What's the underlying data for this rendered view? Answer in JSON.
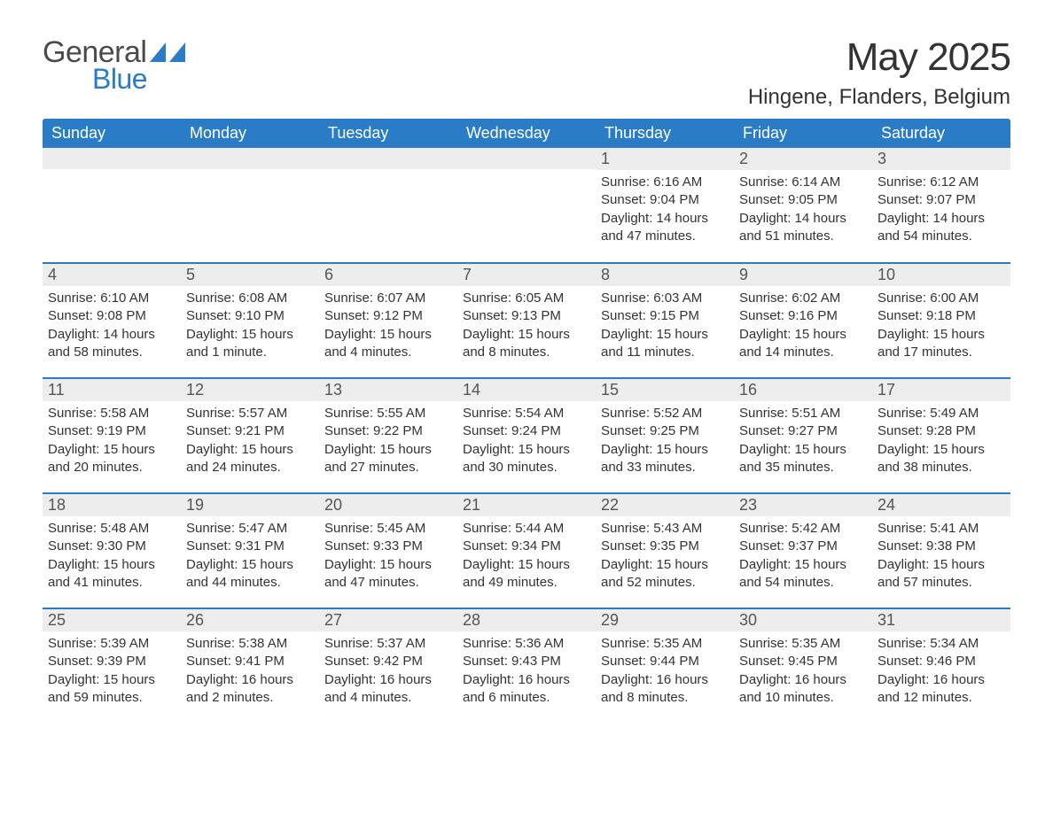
{
  "logo": {
    "text1": "General",
    "text2": "Blue",
    "icon_color": "#2a7cc7"
  },
  "title": "May 2025",
  "location": "Hingene, Flanders, Belgium",
  "colors": {
    "header_bg": "#2a7cc7",
    "header_text": "#ffffff",
    "row_border": "#2a7cc7",
    "daynum_bg": "#ededed",
    "daynum_text": "#555555",
    "body_text": "#333333",
    "page_bg": "#ffffff"
  },
  "font": {
    "family": "Arial",
    "title_size_pt": 33,
    "location_size_pt": 18,
    "th_size_pt": 14,
    "daynum_size_pt": 14,
    "body_size_pt": 11
  },
  "day_headers": [
    "Sunday",
    "Monday",
    "Tuesday",
    "Wednesday",
    "Thursday",
    "Friday",
    "Saturday"
  ],
  "weeks": [
    [
      null,
      null,
      null,
      null,
      {
        "n": "1",
        "sunrise": "6:16 AM",
        "sunset": "9:04 PM",
        "daylight": "14 hours and 47 minutes."
      },
      {
        "n": "2",
        "sunrise": "6:14 AM",
        "sunset": "9:05 PM",
        "daylight": "14 hours and 51 minutes."
      },
      {
        "n": "3",
        "sunrise": "6:12 AM",
        "sunset": "9:07 PM",
        "daylight": "14 hours and 54 minutes."
      }
    ],
    [
      {
        "n": "4",
        "sunrise": "6:10 AM",
        "sunset": "9:08 PM",
        "daylight": "14 hours and 58 minutes."
      },
      {
        "n": "5",
        "sunrise": "6:08 AM",
        "sunset": "9:10 PM",
        "daylight": "15 hours and 1 minute."
      },
      {
        "n": "6",
        "sunrise": "6:07 AM",
        "sunset": "9:12 PM",
        "daylight": "15 hours and 4 minutes."
      },
      {
        "n": "7",
        "sunrise": "6:05 AM",
        "sunset": "9:13 PM",
        "daylight": "15 hours and 8 minutes."
      },
      {
        "n": "8",
        "sunrise": "6:03 AM",
        "sunset": "9:15 PM",
        "daylight": "15 hours and 11 minutes."
      },
      {
        "n": "9",
        "sunrise": "6:02 AM",
        "sunset": "9:16 PM",
        "daylight": "15 hours and 14 minutes."
      },
      {
        "n": "10",
        "sunrise": "6:00 AM",
        "sunset": "9:18 PM",
        "daylight": "15 hours and 17 minutes."
      }
    ],
    [
      {
        "n": "11",
        "sunrise": "5:58 AM",
        "sunset": "9:19 PM",
        "daylight": "15 hours and 20 minutes."
      },
      {
        "n": "12",
        "sunrise": "5:57 AM",
        "sunset": "9:21 PM",
        "daylight": "15 hours and 24 minutes."
      },
      {
        "n": "13",
        "sunrise": "5:55 AM",
        "sunset": "9:22 PM",
        "daylight": "15 hours and 27 minutes."
      },
      {
        "n": "14",
        "sunrise": "5:54 AM",
        "sunset": "9:24 PM",
        "daylight": "15 hours and 30 minutes."
      },
      {
        "n": "15",
        "sunrise": "5:52 AM",
        "sunset": "9:25 PM",
        "daylight": "15 hours and 33 minutes."
      },
      {
        "n": "16",
        "sunrise": "5:51 AM",
        "sunset": "9:27 PM",
        "daylight": "15 hours and 35 minutes."
      },
      {
        "n": "17",
        "sunrise": "5:49 AM",
        "sunset": "9:28 PM",
        "daylight": "15 hours and 38 minutes."
      }
    ],
    [
      {
        "n": "18",
        "sunrise": "5:48 AM",
        "sunset": "9:30 PM",
        "daylight": "15 hours and 41 minutes."
      },
      {
        "n": "19",
        "sunrise": "5:47 AM",
        "sunset": "9:31 PM",
        "daylight": "15 hours and 44 minutes."
      },
      {
        "n": "20",
        "sunrise": "5:45 AM",
        "sunset": "9:33 PM",
        "daylight": "15 hours and 47 minutes."
      },
      {
        "n": "21",
        "sunrise": "5:44 AM",
        "sunset": "9:34 PM",
        "daylight": "15 hours and 49 minutes."
      },
      {
        "n": "22",
        "sunrise": "5:43 AM",
        "sunset": "9:35 PM",
        "daylight": "15 hours and 52 minutes."
      },
      {
        "n": "23",
        "sunrise": "5:42 AM",
        "sunset": "9:37 PM",
        "daylight": "15 hours and 54 minutes."
      },
      {
        "n": "24",
        "sunrise": "5:41 AM",
        "sunset": "9:38 PM",
        "daylight": "15 hours and 57 minutes."
      }
    ],
    [
      {
        "n": "25",
        "sunrise": "5:39 AM",
        "sunset": "9:39 PM",
        "daylight": "15 hours and 59 minutes."
      },
      {
        "n": "26",
        "sunrise": "5:38 AM",
        "sunset": "9:41 PM",
        "daylight": "16 hours and 2 minutes."
      },
      {
        "n": "27",
        "sunrise": "5:37 AM",
        "sunset": "9:42 PM",
        "daylight": "16 hours and 4 minutes."
      },
      {
        "n": "28",
        "sunrise": "5:36 AM",
        "sunset": "9:43 PM",
        "daylight": "16 hours and 6 minutes."
      },
      {
        "n": "29",
        "sunrise": "5:35 AM",
        "sunset": "9:44 PM",
        "daylight": "16 hours and 8 minutes."
      },
      {
        "n": "30",
        "sunrise": "5:35 AM",
        "sunset": "9:45 PM",
        "daylight": "16 hours and 10 minutes."
      },
      {
        "n": "31",
        "sunrise": "5:34 AM",
        "sunset": "9:46 PM",
        "daylight": "16 hours and 12 minutes."
      }
    ]
  ],
  "labels": {
    "sunrise": "Sunrise:",
    "sunset": "Sunset:",
    "daylight": "Daylight:"
  }
}
